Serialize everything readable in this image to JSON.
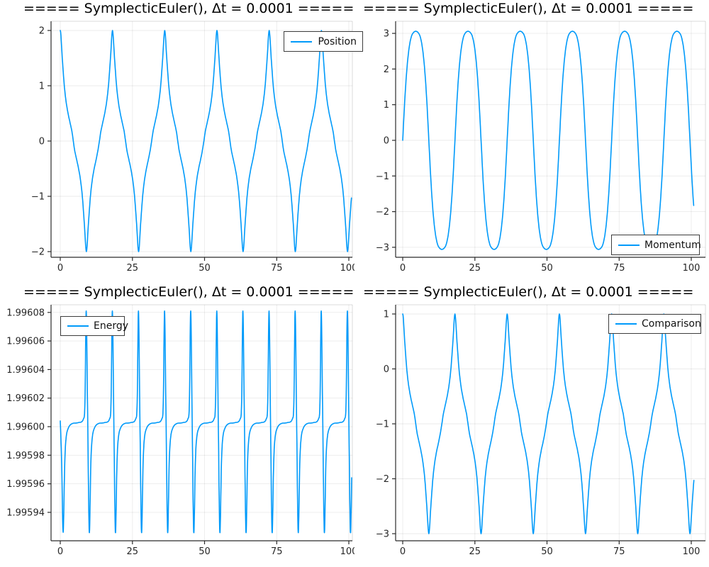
{
  "figure": {
    "background": "#ffffff",
    "style": {
      "series_blue": "#009AFA",
      "grid_color": "#000000",
      "grid_opacity": 0.08,
      "spine_color": "#2b2b2b",
      "frame_light_color": "#000000",
      "frame_light_opacity": 0.14,
      "tick_label_color": "#262626",
      "legend_border": "#3d3d3d",
      "title_color": "#000000"
    }
  },
  "chart_data": [
    {
      "type": "line",
      "title": "===== SymplecticEuler(), Δt = 0.0001 =====",
      "xlabel": "",
      "ylabel": "",
      "xlim": [
        -3.2,
        101.3
      ],
      "ylim": [
        -2.1,
        2.15
      ],
      "grid": true,
      "x_ticks": [
        0,
        25,
        50,
        75,
        100
      ],
      "x_tick_labels": [
        "0",
        "25",
        "50",
        "75",
        "100"
      ],
      "y_ticks": [
        2,
        1,
        0,
        -1,
        -2
      ],
      "y_tick_labels": [
        "2",
        "1",
        "0",
        "−1",
        "−2"
      ],
      "legend_position": "top-right",
      "series": [
        {
          "name": "Position",
          "color": "#009AFA",
          "waveform": {
            "kind": "periodic-spline",
            "period": 18.1,
            "t_range": [
              0,
              100.9
            ],
            "points": [
              [
                0,
                2.0
              ],
              [
                0.7,
                1.5
              ],
              [
                1.35,
                1.03
              ],
              [
                2.0,
                0.72
              ],
              [
                2.7,
                0.5
              ],
              [
                3.4,
                0.33
              ],
              [
                4.05,
                0.17
              ],
              [
                4.52,
                0.0
              ],
              [
                5.0,
                -0.17
              ],
              [
                5.65,
                -0.33
              ],
              [
                6.35,
                -0.5
              ],
              [
                7.05,
                -0.72
              ],
              [
                7.7,
                -1.03
              ],
              [
                8.35,
                -1.5
              ],
              [
                9.05,
                -2.0
              ],
              [
                9.75,
                -1.5
              ],
              [
                10.4,
                -1.03
              ],
              [
                11.05,
                -0.72
              ],
              [
                11.75,
                -0.5
              ],
              [
                12.45,
                -0.33
              ],
              [
                13.05,
                -0.17
              ],
              [
                13.57,
                0.0
              ],
              [
                14.05,
                0.17
              ],
              [
                14.7,
                0.33
              ],
              [
                15.4,
                0.5
              ],
              [
                16.1,
                0.72
              ],
              [
                16.75,
                1.03
              ],
              [
                17.4,
                1.5
              ]
            ]
          }
        }
      ]
    },
    {
      "type": "line",
      "title": "===== SymplecticEuler(), Δt = 0.0001 =====",
      "xlabel": "",
      "ylabel": "",
      "xlim": [
        -2.5,
        102.5
      ],
      "ylim": [
        -3.3,
        3.35
      ],
      "grid": true,
      "x_ticks": [
        0,
        25,
        50,
        75,
        100
      ],
      "x_tick_labels": [
        "0",
        "25",
        "50",
        "75",
        "100"
      ],
      "y_ticks": [
        3,
        2,
        1,
        0,
        -1,
        -2,
        -3
      ],
      "y_tick_labels": [
        "3",
        "2",
        "1",
        "0",
        "−1",
        "−2",
        "−3"
      ],
      "legend_position": "bottom-right",
      "series": [
        {
          "name": "Momentum",
          "color": "#009AFA",
          "waveform": {
            "kind": "periodic-spline",
            "period": 18.1,
            "t_range": [
              0,
              100.9
            ],
            "points": [
              [
                0,
                0.0
              ],
              [
                0.7,
                1.1
              ],
              [
                1.4,
                1.95
              ],
              [
                2.1,
                2.52
              ],
              [
                2.8,
                2.85
              ],
              [
                3.5,
                3.0
              ],
              [
                4.52,
                3.06
              ],
              [
                5.55,
                3.0
              ],
              [
                6.25,
                2.85
              ],
              [
                6.95,
                2.52
              ],
              [
                7.65,
                1.95
              ],
              [
                8.35,
                1.1
              ],
              [
                9.05,
                0.0
              ],
              [
                9.75,
                -1.1
              ],
              [
                10.45,
                -1.95
              ],
              [
                11.15,
                -2.52
              ],
              [
                11.85,
                -2.85
              ],
              [
                12.55,
                -3.0
              ],
              [
                13.57,
                -3.06
              ],
              [
                14.6,
                -3.0
              ],
              [
                15.3,
                -2.85
              ],
              [
                16.0,
                -2.52
              ],
              [
                16.7,
                -1.95
              ],
              [
                17.4,
                -1.1
              ]
            ]
          }
        }
      ]
    },
    {
      "type": "line",
      "title": "===== SymplecticEuler(), Δt = 0.0001 =====",
      "xlabel": "",
      "ylabel": "",
      "xlim": [
        -3.2,
        101.3
      ],
      "ylim": [
        1.995922,
        1.996085
      ],
      "grid": true,
      "x_ticks": [
        0,
        25,
        50,
        75,
        100
      ],
      "x_tick_labels": [
        "0",
        "25",
        "50",
        "75",
        "100"
      ],
      "y_ticks": [
        8,
        6,
        4,
        2,
        0,
        -2,
        -4,
        -6
      ],
      "y_tick_labels": [
        "1.99608",
        "1.99606",
        "1.99604",
        "1.99602",
        "1.99600",
        "1.99598",
        "1.99596",
        "1.99594"
      ],
      "legend_position": "top-left",
      "series": [
        {
          "name": "Energy",
          "color": "#009AFA",
          "waveform": {
            "kind": "wavelet-train",
            "t_range": [
              0,
              101
            ],
            "value_base": 1.996,
            "value_unit": 1e-05,
            "plateau_level": 0.28,
            "peak_level": 8.1,
            "dip_level": -7.4,
            "dip_times": [
              1.0,
              10.05,
              19.1,
              28.15,
              37.2,
              46.25,
              55.3,
              64.35,
              73.4,
              82.45,
              91.5,
              100.55
            ],
            "lead_points": [
              [
                0,
                0.4
              ],
              [
                0.5,
                -2.6
              ]
            ],
            "wavelet": [
              [
                -2.1,
                0.5
              ],
              [
                -1.5,
                1.7
              ],
              [
                -1.05,
                8.1
              ],
              [
                -0.55,
                0.6
              ],
              [
                0,
                -7.4
              ],
              [
                0.55,
                -2.6
              ],
              [
                1.05,
                -0.75
              ],
              [
                1.9,
                -0.05
              ],
              [
                3.2,
                0.22
              ]
            ],
            "plateau_offset": [
              5.2,
              0.28
            ]
          }
        }
      ]
    },
    {
      "type": "line",
      "title": "===== SymplecticEuler(), Δt = 0.0001 =====",
      "xlabel": "",
      "ylabel": "",
      "xlim": [
        -2.5,
        102.5
      ],
      "ylim": [
        -3.12,
        1.16
      ],
      "grid": true,
      "x_ticks": [
        0,
        25,
        50,
        75,
        100
      ],
      "x_tick_labels": [
        "0",
        "25",
        "50",
        "75",
        "100"
      ],
      "y_ticks": [
        1,
        0,
        -1,
        -2,
        -3
      ],
      "y_tick_labels": [
        "1",
        "0",
        "−1",
        "−2",
        "−3"
      ],
      "legend_position": "top-right",
      "series": [
        {
          "name": "Comparison",
          "color": "#009AFA",
          "waveform": {
            "kind": "periodic-spline",
            "period": 18.1,
            "t_range": [
              0,
              100.9
            ],
            "points": [
              [
                0,
                1.0
              ],
              [
                0.7,
                0.5
              ],
              [
                1.35,
                0.03
              ],
              [
                2.0,
                -0.28
              ],
              [
                2.7,
                -0.5
              ],
              [
                3.4,
                -0.67
              ],
              [
                4.05,
                -0.83
              ],
              [
                4.52,
                -1.0
              ],
              [
                5.0,
                -1.17
              ],
              [
                5.65,
                -1.33
              ],
              [
                6.35,
                -1.5
              ],
              [
                7.05,
                -1.72
              ],
              [
                7.7,
                -2.03
              ],
              [
                8.35,
                -2.5
              ],
              [
                9.05,
                -3.0
              ],
              [
                9.75,
                -2.5
              ],
              [
                10.4,
                -2.03
              ],
              [
                11.05,
                -1.72
              ],
              [
                11.75,
                -1.5
              ],
              [
                12.45,
                -1.33
              ],
              [
                13.05,
                -1.17
              ],
              [
                13.57,
                -1.0
              ],
              [
                14.05,
                -0.83
              ],
              [
                14.7,
                -0.67
              ],
              [
                15.4,
                -0.5
              ],
              [
                16.1,
                -0.28
              ],
              [
                16.75,
                0.03
              ],
              [
                17.4,
                0.5
              ]
            ]
          }
        }
      ]
    }
  ]
}
